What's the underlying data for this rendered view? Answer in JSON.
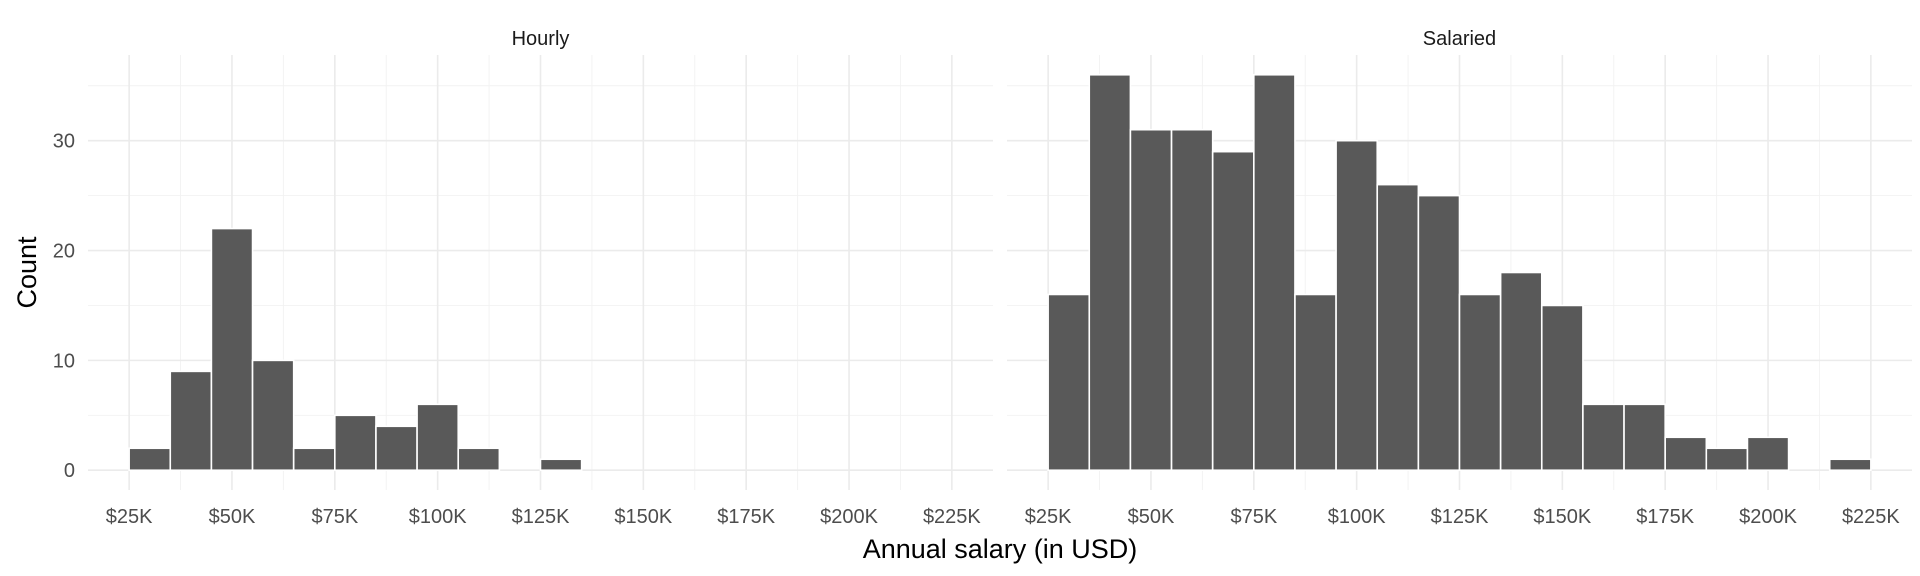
{
  "chart_data": {
    "type": "bar",
    "xlabel": "Annual salary (in USD)",
    "ylabel": "Count",
    "x_ticks": [
      25000,
      50000,
      75000,
      100000,
      125000,
      150000,
      175000,
      200000,
      225000
    ],
    "x_tick_labels": [
      "$25K",
      "$50K",
      "$75K",
      "$100K",
      "$125K",
      "$150K",
      "$175K",
      "$200K",
      "$225K"
    ],
    "xlim": [
      15000,
      235000
    ],
    "y_ticks": [
      0,
      10,
      20,
      30
    ],
    "y_tick_labels": [
      "0",
      "10",
      "20",
      "30"
    ],
    "ylim": [
      -1.8,
      37.8
    ],
    "bin_width": 10000,
    "grid": true,
    "panels": [
      {
        "title": "Hourly",
        "bins": [
          {
            "x": 30000,
            "count": 2
          },
          {
            "x": 40000,
            "count": 9
          },
          {
            "x": 50000,
            "count": 22
          },
          {
            "x": 60000,
            "count": 10
          },
          {
            "x": 70000,
            "count": 2
          },
          {
            "x": 80000,
            "count": 5
          },
          {
            "x": 90000,
            "count": 4
          },
          {
            "x": 100000,
            "count": 6
          },
          {
            "x": 110000,
            "count": 2
          },
          {
            "x": 120000,
            "count": 0
          },
          {
            "x": 130000,
            "count": 1
          },
          {
            "x": 140000,
            "count": 0
          },
          {
            "x": 150000,
            "count": 0
          },
          {
            "x": 160000,
            "count": 0
          },
          {
            "x": 170000,
            "count": 0
          },
          {
            "x": 180000,
            "count": 0
          },
          {
            "x": 190000,
            "count": 0
          },
          {
            "x": 200000,
            "count": 0
          },
          {
            "x": 210000,
            "count": 0
          },
          {
            "x": 220000,
            "count": 0
          }
        ]
      },
      {
        "title": "Salaried",
        "bins": [
          {
            "x": 30000,
            "count": 16
          },
          {
            "x": 40000,
            "count": 36
          },
          {
            "x": 50000,
            "count": 31
          },
          {
            "x": 60000,
            "count": 31
          },
          {
            "x": 70000,
            "count": 29
          },
          {
            "x": 80000,
            "count": 36
          },
          {
            "x": 90000,
            "count": 16
          },
          {
            "x": 100000,
            "count": 30
          },
          {
            "x": 110000,
            "count": 26
          },
          {
            "x": 120000,
            "count": 25
          },
          {
            "x": 130000,
            "count": 16
          },
          {
            "x": 140000,
            "count": 18
          },
          {
            "x": 150000,
            "count": 15
          },
          {
            "x": 160000,
            "count": 6
          },
          {
            "x": 170000,
            "count": 6
          },
          {
            "x": 180000,
            "count": 3
          },
          {
            "x": 190000,
            "count": 2
          },
          {
            "x": 200000,
            "count": 3
          },
          {
            "x": 210000,
            "count": 0
          },
          {
            "x": 220000,
            "count": 1
          }
        ]
      }
    ],
    "colors": {
      "bar": "#595959",
      "bar_outline": "#ffffff",
      "grid_major": "#ebebeb",
      "grid_minor": "#f2f2f2"
    }
  }
}
